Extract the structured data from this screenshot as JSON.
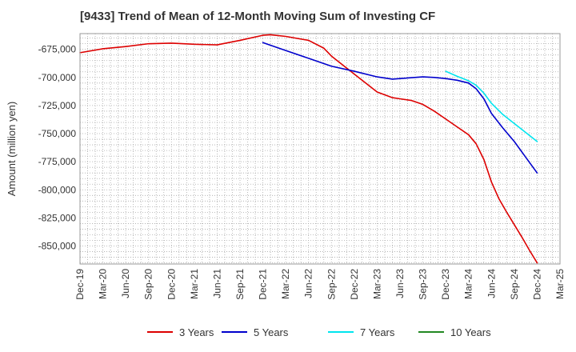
{
  "chart_data": {
    "type": "line",
    "title": "[9433]  Trend of Mean of 12-Month Moving Sum of Investing CF",
    "xlabel": "",
    "ylabel": "Amount (million yen)",
    "x_ticks": [
      "Dec-19",
      "Mar-20",
      "Jun-20",
      "Sep-20",
      "Dec-20",
      "Mar-21",
      "Jun-21",
      "Sep-21",
      "Dec-21",
      "Mar-22",
      "Jun-22",
      "Sep-22",
      "Dec-22",
      "Mar-23",
      "Jun-23",
      "Sep-23",
      "Dec-23",
      "Mar-24",
      "Jun-24",
      "Sep-24",
      "Dec-24",
      "Mar-25"
    ],
    "y_ticks": [
      -675000,
      -700000,
      -725000,
      -750000,
      -775000,
      -800000,
      -825000,
      -850000
    ],
    "y_tick_labels": [
      "-675,000",
      "-700,000",
      "-725,000",
      "-750,000",
      "-775,000",
      "-800,000",
      "-825,000",
      "-850,000"
    ],
    "ylim": [
      -866000,
      -661000
    ],
    "grid": true,
    "series": [
      {
        "name": "3 Years",
        "color": "#dd0000",
        "points": [
          [
            0,
            -678000
          ],
          [
            1,
            -674500
          ],
          [
            2,
            -672500
          ],
          [
            3,
            -670000
          ],
          [
            4,
            -669500
          ],
          [
            5,
            -670500
          ],
          [
            6,
            -671000
          ],
          [
            7,
            -667000
          ],
          [
            8,
            -662500
          ],
          [
            8.33,
            -662000
          ],
          [
            9,
            -663500
          ],
          [
            10,
            -667000
          ],
          [
            10.67,
            -674000
          ],
          [
            11,
            -681000
          ],
          [
            12,
            -697000
          ],
          [
            13,
            -713000
          ],
          [
            13.67,
            -718000
          ],
          [
            14,
            -719000
          ],
          [
            14.5,
            -720500
          ],
          [
            15,
            -724000
          ],
          [
            15.5,
            -730000
          ],
          [
            16,
            -737000
          ],
          [
            16.5,
            -744000
          ],
          [
            17,
            -751000
          ],
          [
            17.33,
            -759000
          ],
          [
            17.67,
            -773000
          ],
          [
            18,
            -793000
          ],
          [
            18.33,
            -808000
          ],
          [
            18.67,
            -820000
          ],
          [
            19,
            -831000
          ],
          [
            19.33,
            -842000
          ],
          [
            19.67,
            -854000
          ],
          [
            20,
            -865000
          ]
        ]
      },
      {
        "name": "5 Years",
        "color": "#0000cc",
        "points": [
          [
            8,
            -669000
          ],
          [
            9,
            -676000
          ],
          [
            10,
            -683000
          ],
          [
            11,
            -690000
          ],
          [
            12,
            -694500
          ],
          [
            13,
            -699500
          ],
          [
            13.67,
            -701500
          ],
          [
            14,
            -701000
          ],
          [
            15,
            -699500
          ],
          [
            15.5,
            -700000
          ],
          [
            16,
            -701000
          ],
          [
            16.5,
            -702500
          ],
          [
            17,
            -705000
          ],
          [
            17.33,
            -710000
          ],
          [
            17.67,
            -719000
          ],
          [
            18,
            -732000
          ],
          [
            18.5,
            -745000
          ],
          [
            19,
            -757000
          ],
          [
            19.5,
            -771000
          ],
          [
            20,
            -785000
          ]
        ]
      },
      {
        "name": "7 Years",
        "color": "#00e5ee",
        "points": [
          [
            16,
            -694500
          ],
          [
            16.5,
            -699000
          ],
          [
            17,
            -703000
          ],
          [
            17.33,
            -707000
          ],
          [
            17.67,
            -714000
          ],
          [
            18,
            -723000
          ],
          [
            18.5,
            -733000
          ],
          [
            19,
            -741000
          ],
          [
            19.5,
            -749000
          ],
          [
            20,
            -757000
          ]
        ]
      },
      {
        "name": "10 Years",
        "color": "#228822",
        "points": []
      }
    ]
  }
}
